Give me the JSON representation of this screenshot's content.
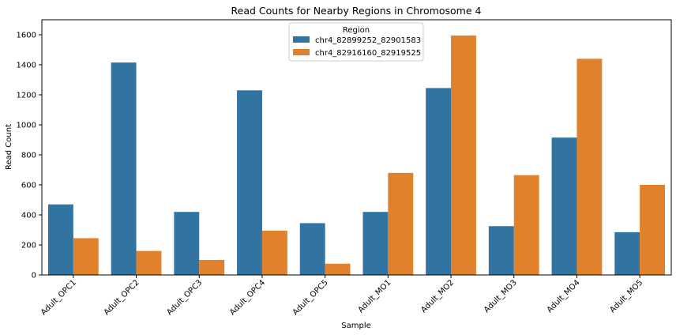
{
  "chart_data": {
    "type": "bar",
    "title": "Read Counts for Nearby Regions in Chromosome 4",
    "xlabel": "Sample",
    "ylabel": "Read Count",
    "categories": [
      "Adult_OPC1",
      "Adult_OPC2",
      "Adult_OPC3",
      "Adult_OPC4",
      "Adult_OPC5",
      "Adult_MO1",
      "Adult_MO2",
      "Adult_MO3",
      "Adult_MO4",
      "Adult_MO5"
    ],
    "series": [
      {
        "name": "chr4_82899252_82901583",
        "color": "#3274a1",
        "values": [
          470,
          1415,
          420,
          1230,
          345,
          420,
          1245,
          325,
          915,
          285
        ]
      },
      {
        "name": "chr4_82916160_82919525",
        "color": "#e1812c",
        "values": [
          245,
          160,
          100,
          295,
          75,
          680,
          1595,
          665,
          1440,
          600
        ]
      }
    ],
    "ylim": [
      0,
      1700
    ],
    "yticks": [
      0,
      200,
      400,
      600,
      800,
      1000,
      1200,
      1400,
      1600
    ],
    "legend": {
      "title": "Region",
      "position": "upper-center"
    },
    "grid": false
  }
}
